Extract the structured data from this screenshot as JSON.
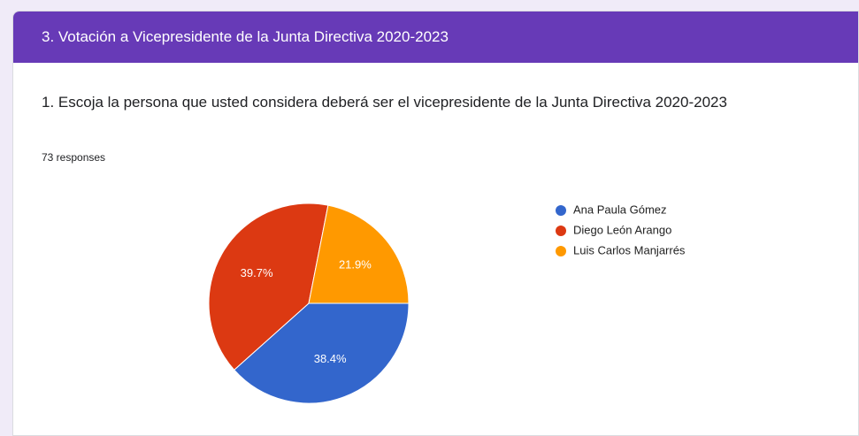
{
  "header": {
    "title": "3. Votación a Vicepresidente de la Junta Directiva 2020-2023"
  },
  "question": {
    "title": "1. Escoja la persona que usted considera deberá ser el vicepresidente de la Junta Directiva 2020-2023",
    "responses": "73 responses"
  },
  "chart_data": {
    "type": "pie",
    "categories": [
      "Ana Paula Gómez",
      "Diego León Arango",
      "Luis Carlos Manjarrés"
    ],
    "values": [
      38.4,
      39.7,
      21.9
    ],
    "value_labels": [
      "38.4%",
      "39.7%",
      "21.9%"
    ],
    "colors": [
      "#3366cc",
      "#dc3912",
      "#ff9900"
    ],
    "legend": "right"
  }
}
